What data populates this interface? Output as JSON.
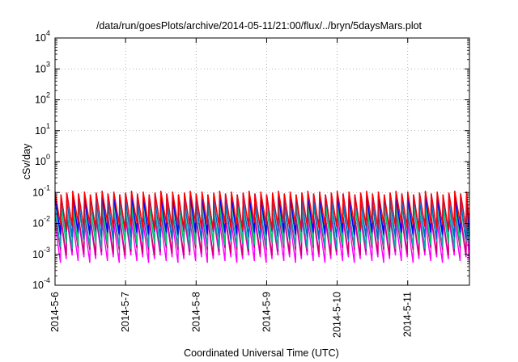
{
  "chart_data": {
    "type": "line",
    "title": "/data/run/goesPlots/archive/2014-05-11/21:00/flux/../bryn/5daysMars.plot",
    "xlabel": "Coordinated Universal Time (UTC)",
    "ylabel": "cSv/day",
    "y_scale": "log",
    "ylim": [
      0.0001,
      10000
    ],
    "y_ticks": [
      {
        "value": 0.0001,
        "base": "10",
        "exp": "-4"
      },
      {
        "value": 0.001,
        "base": "10",
        "exp": "-3"
      },
      {
        "value": 0.01,
        "base": "10",
        "exp": "-2"
      },
      {
        "value": 0.1,
        "base": "10",
        "exp": "-1"
      },
      {
        "value": 1,
        "base": "10",
        "exp": "0"
      },
      {
        "value": 10,
        "base": "10",
        "exp": "1"
      },
      {
        "value": 100,
        "base": "10",
        "exp": "2"
      },
      {
        "value": 1000,
        "base": "10",
        "exp": "3"
      },
      {
        "value": 10000,
        "base": "10",
        "exp": "4"
      }
    ],
    "xlim": [
      "2014-05-06",
      "2014-05-11T21:00"
    ],
    "x_ticks": [
      {
        "value": "2014-05-06",
        "label": "2014-5-6"
      },
      {
        "value": "2014-05-07",
        "label": "2014-5-7"
      },
      {
        "value": "2014-05-08",
        "label": "2014-5-8"
      },
      {
        "value": "2014-05-09",
        "label": "2014-5-9"
      },
      {
        "value": "2014-05-10",
        "label": "2014-5-10"
      },
      {
        "value": "2014-05-11",
        "label": "2014-5-11"
      }
    ],
    "grid": true,
    "legend": "none",
    "colors": [
      "#ff00ff",
      "#cc0066",
      "#00aaaa",
      "#00cc66",
      "#0066cc",
      "#0000ff",
      "#ff0000",
      "#00ffff"
    ],
    "sawtooth_period_hours": 2,
    "series": [
      {
        "color": "#ff00ff",
        "peak": 0.012,
        "trough": 0.0007
      },
      {
        "color": "#cc0066",
        "peak": 0.018,
        "trough": 0.0012
      },
      {
        "color": "#00aaaa",
        "peak": 0.03,
        "trough": 0.002
      },
      {
        "color": "#00cc66",
        "peak": 0.045,
        "trough": 0.003
      },
      {
        "color": "#0066cc",
        "peak": 0.06,
        "trough": 0.004
      },
      {
        "color": "#0000ff",
        "peak": 0.085,
        "trough": 0.006
      },
      {
        "color": "#ff0000",
        "peak": 0.1,
        "trough": 0.008
      }
    ]
  }
}
